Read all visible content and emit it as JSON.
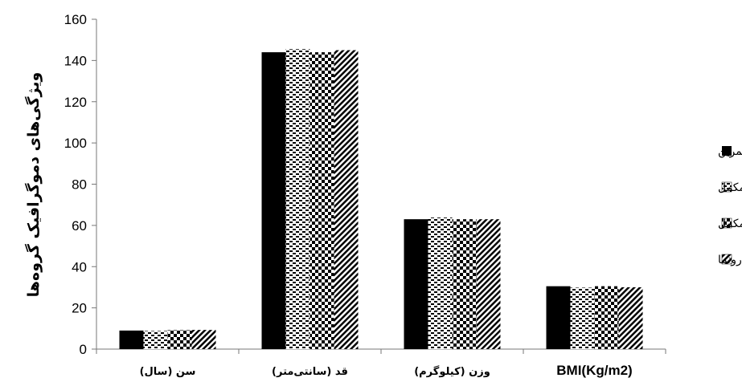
{
  "chart_data": {
    "type": "bar",
    "categories": [
      "سن (سال)",
      "قد (سانتی‌متر)",
      "وزن (کیلوگرم)",
      "BMI(Kg/m2)"
    ],
    "series": [
      {
        "name": "تمرین",
        "values": [
          9,
          144,
          63,
          30.5
        ]
      },
      {
        "name": "مکمل",
        "values": [
          8.8,
          145.5,
          63.8,
          29.8
        ]
      },
      {
        "name": "تمرین+مکمل",
        "values": [
          9.2,
          144,
          63,
          30.5
        ]
      },
      {
        "name": "دارونما",
        "values": [
          9.3,
          145,
          63,
          30
        ]
      }
    ],
    "title": "",
    "xlabel": "",
    "ylabel": "ویژگی‌های دموگرافیک گروه‌ها",
    "ylim": [
      0,
      160
    ],
    "yticks": [
      0,
      20,
      40,
      60,
      80,
      100,
      120,
      140,
      160
    ],
    "grid": false,
    "legend_position": "right",
    "series_patterns": [
      "solid",
      "dashes",
      "checker",
      "diagonal"
    ]
  }
}
